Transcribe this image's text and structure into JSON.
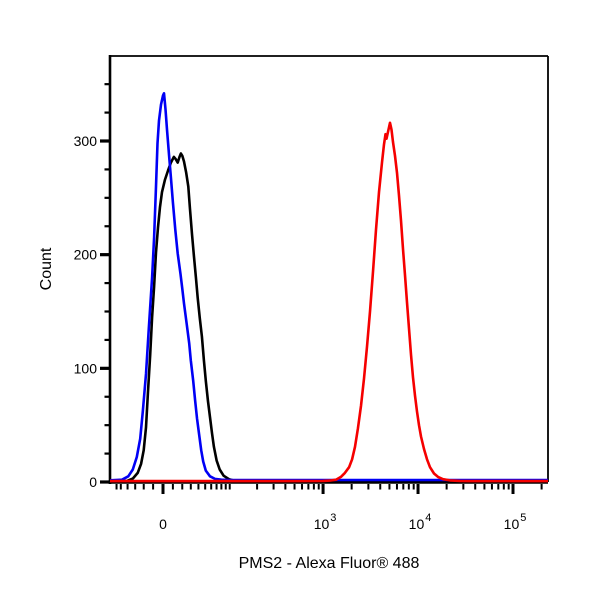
{
  "chart_data": {
    "type": "line",
    "subtype": "flow-cytometry-histogram-overlay",
    "title": "",
    "xlabel": "PMS2 - Alexa Fluor® 488",
    "ylabel": "Count",
    "background": "#ffffff",
    "grid": false,
    "legend": "none",
    "x_axis": {
      "scale_type": "biexponential-asinh",
      "range": [
        -68,
        233000
      ],
      "major_ticks": [
        {
          "value": 0,
          "base": "0",
          "exponent": ""
        },
        {
          "value": 1000,
          "base": "10",
          "exponent": "3"
        },
        {
          "value": 10000,
          "base": "10",
          "exponent": "4"
        },
        {
          "value": 100000,
          "base": "10",
          "exponent": "5"
        }
      ],
      "minor_ticks": [
        -57,
        -50,
        -40,
        -30,
        -20,
        -10,
        10,
        20,
        30,
        40,
        50,
        60,
        70,
        80,
        90,
        100,
        200,
        300,
        400,
        500,
        600,
        700,
        800,
        900,
        2000,
        3000,
        4000,
        5000,
        6000,
        7000,
        8000,
        9000,
        20000,
        30000,
        40000,
        50000,
        60000,
        70000,
        80000,
        90000,
        200000
      ]
    },
    "y_axis": {
      "scale_type": "linear",
      "range": [
        0,
        375
      ],
      "major_ticks": [
        {
          "value": 0,
          "label": "0"
        },
        {
          "value": 100,
          "label": "100"
        },
        {
          "value": 200,
          "label": "200"
        },
        {
          "value": 300,
          "label": "300"
        }
      ],
      "minor_ticks": [
        25,
        50,
        75,
        125,
        150,
        175,
        225,
        250,
        275,
        325,
        350
      ]
    },
    "series": [
      {
        "name": "black-control-curve",
        "color": "#000000",
        "peak": {
          "x": 18.5,
          "count": 289
        },
        "points": [
          [
            -68,
            0.3
          ],
          [
            -41,
            1
          ],
          [
            -33,
            3
          ],
          [
            -27,
            8
          ],
          [
            -23,
            16
          ],
          [
            -20,
            28
          ],
          [
            -17.5,
            48
          ],
          [
            -15.5,
            78
          ],
          [
            -13,
            112
          ],
          [
            -11,
            145
          ],
          [
            -9,
            172
          ],
          [
            -7,
            202
          ],
          [
            -5,
            224
          ],
          [
            -3,
            242
          ],
          [
            -1,
            255
          ],
          [
            2,
            266
          ],
          [
            5,
            274
          ],
          [
            8,
            281
          ],
          [
            11,
            286
          ],
          [
            13,
            284
          ],
          [
            15,
            281
          ],
          [
            17,
            286
          ],
          [
            18.5,
            289
          ],
          [
            20,
            287
          ],
          [
            22,
            282
          ],
          [
            24.5,
            272
          ],
          [
            27,
            260
          ],
          [
            29,
            240
          ],
          [
            31.5,
            218
          ],
          [
            34,
            198
          ],
          [
            36.5,
            180
          ],
          [
            39,
            162
          ],
          [
            42,
            144
          ],
          [
            45,
            128
          ],
          [
            48,
            107
          ],
          [
            51,
            89
          ],
          [
            54.5,
            71
          ],
          [
            58,
            57
          ],
          [
            61.5,
            43
          ],
          [
            65,
            31
          ],
          [
            70,
            19
          ],
          [
            76.5,
            11
          ],
          [
            85,
            5.5
          ],
          [
            98,
            2.5
          ],
          [
            115,
            1
          ],
          [
            500,
            0.3
          ],
          [
            233000,
            0.3
          ]
        ]
      },
      {
        "name": "blue-control-curve",
        "color": "#0000f5",
        "peak": {
          "x": 1,
          "count": 342
        },
        "points": [
          [
            -68,
            1.5
          ],
          [
            -48,
            2
          ],
          [
            -39,
            5
          ],
          [
            -33,
            11
          ],
          [
            -28,
            22
          ],
          [
            -24,
            38
          ],
          [
            -21,
            62
          ],
          [
            -17.5,
            95
          ],
          [
            -14.5,
            135
          ],
          [
            -11,
            180
          ],
          [
            -9,
            215
          ],
          [
            -7,
            260
          ],
          [
            -5.5,
            298
          ],
          [
            -4,
            318
          ],
          [
            -2,
            332
          ],
          [
            0,
            340
          ],
          [
            1,
            342
          ],
          [
            2.5,
            328
          ],
          [
            4,
            310
          ],
          [
            6,
            288
          ],
          [
            8,
            268
          ],
          [
            10,
            246
          ],
          [
            12.5,
            222
          ],
          [
            15,
            201
          ],
          [
            18,
            183
          ],
          [
            20,
            170
          ],
          [
            22,
            157
          ],
          [
            25,
            139
          ],
          [
            28,
            122
          ],
          [
            30,
            107
          ],
          [
            33,
            89
          ],
          [
            35.5,
            72
          ],
          [
            38,
            56
          ],
          [
            41,
            42
          ],
          [
            44,
            28
          ],
          [
            47,
            18
          ],
          [
            51,
            10
          ],
          [
            58,
            5
          ],
          [
            67,
            2.7
          ],
          [
            80,
            2
          ],
          [
            100,
            1.8
          ],
          [
            1000,
            1.8
          ],
          [
            233000,
            1.8
          ]
        ]
      },
      {
        "name": "red-pms2-curve",
        "color": "#f50000",
        "peak": {
          "x": 5070,
          "count": 316
        },
        "points": [
          [
            -68,
            0.8
          ],
          [
            500,
            0.8
          ],
          [
            1000,
            1
          ],
          [
            1180,
            1.2
          ],
          [
            1370,
            2
          ],
          [
            1540,
            4.5
          ],
          [
            1700,
            8
          ],
          [
            1880,
            13
          ],
          [
            2020,
            20
          ],
          [
            2170,
            31
          ],
          [
            2330,
            47
          ],
          [
            2510,
            67
          ],
          [
            2700,
            91
          ],
          [
            2900,
            119
          ],
          [
            3120,
            150
          ],
          [
            3360,
            185
          ],
          [
            3610,
            222
          ],
          [
            3880,
            255
          ],
          [
            4180,
            282
          ],
          [
            4380,
            297
          ],
          [
            4540,
            306
          ],
          [
            4660,
            302
          ],
          [
            4830,
            308
          ],
          [
            5070,
            316
          ],
          [
            5260,
            310
          ],
          [
            5450,
            299
          ],
          [
            5720,
            287
          ],
          [
            6000,
            272
          ],
          [
            6300,
            252
          ],
          [
            6620,
            230
          ],
          [
            6950,
            205
          ],
          [
            7290,
            182
          ],
          [
            7650,
            158
          ],
          [
            8030,
            135
          ],
          [
            8430,
            112
          ],
          [
            8850,
            92
          ],
          [
            9290,
            76
          ],
          [
            9750,
            62
          ],
          [
            10230,
            50
          ],
          [
            10740,
            40
          ],
          [
            11550,
            29
          ],
          [
            12430,
            20
          ],
          [
            13370,
            13
          ],
          [
            14730,
            7.5
          ],
          [
            16230,
            4.5
          ],
          [
            18320,
            2.5
          ],
          [
            21700,
            1.4
          ],
          [
            27700,
            1
          ],
          [
            35000,
            0.8
          ],
          [
            233000,
            0.8
          ]
        ]
      }
    ]
  }
}
